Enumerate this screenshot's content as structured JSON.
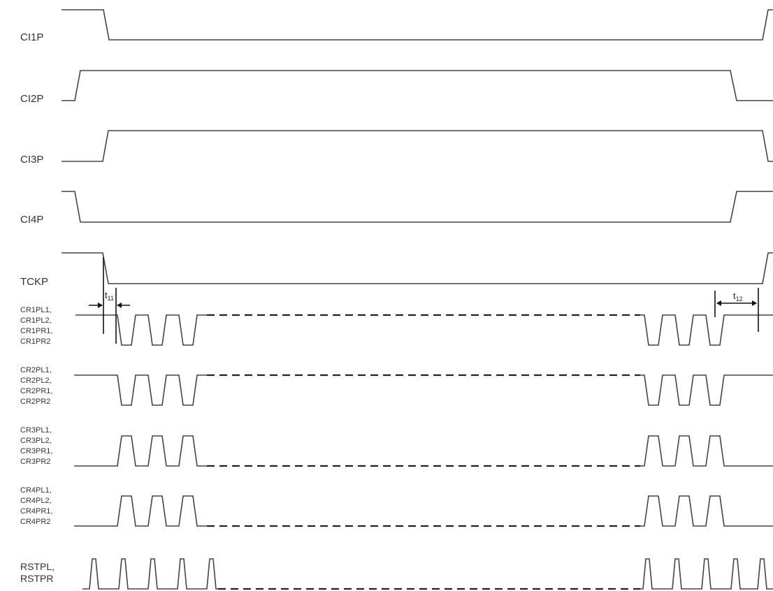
{
  "signals": {
    "ci1p": "CI1P",
    "ci2p": "CI2P",
    "ci3p": "CI3P",
    "ci4p": "CI4P",
    "tckp": "TCKP"
  },
  "groups": {
    "cr1": [
      "CR1PL1,",
      "CR1PL2,",
      "CR1PR1,",
      "CR1PR2"
    ],
    "cr2": [
      "CR2PL1,",
      "CR2PL2,",
      "CR2PR1,",
      "CR2PR2"
    ],
    "cr3": [
      "CR3PL1,",
      "CR3PL2,",
      "CR3PR1,",
      "CR3PR2"
    ],
    "cr4": [
      "CR4PL1,",
      "CR4PL2,",
      "CR4PR1,",
      "CR4PR2"
    ],
    "rst": [
      "RSTPL,",
      "RSTPR"
    ]
  },
  "timing": {
    "t11": {
      "main": "t",
      "sub": "11"
    },
    "t12": {
      "main": "t",
      "sub": "12"
    }
  }
}
